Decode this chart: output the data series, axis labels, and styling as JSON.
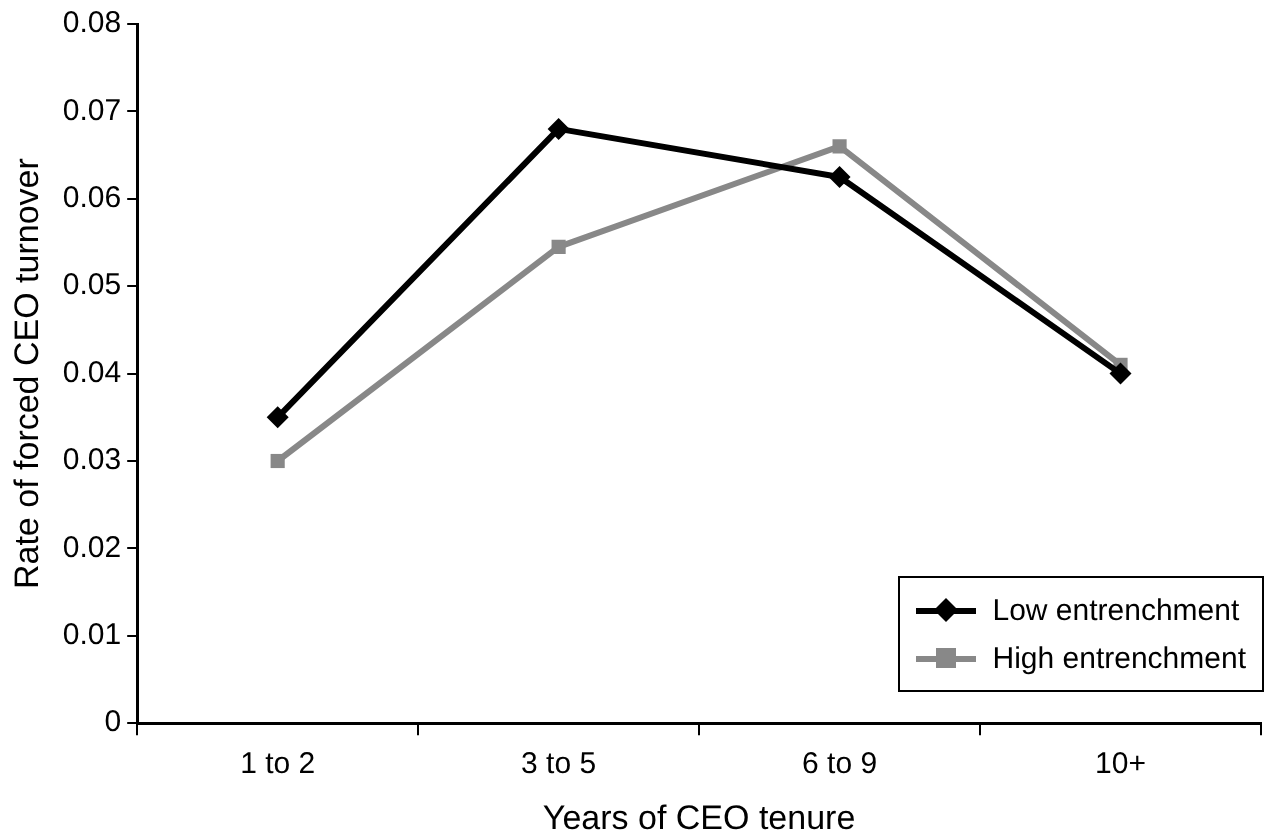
{
  "chart_data": {
    "type": "line",
    "xlabel": "Years of CEO tenure",
    "ylabel": "Rate of forced CEO turnover",
    "categories": [
      "1 to 2",
      "3 to 5",
      "6 to 9",
      "10+"
    ],
    "series": [
      {
        "name": "Low entrenchment",
        "color": "#000000",
        "marker": "diamond",
        "values": [
          0.035,
          0.068,
          0.0625,
          0.04
        ]
      },
      {
        "name": "High entrenchment",
        "color": "#888888",
        "marker": "square",
        "values": [
          0.03,
          0.0545,
          0.066,
          0.041
        ]
      }
    ],
    "ylim": [
      0,
      0.08
    ],
    "yticks": [
      0,
      0.01,
      0.02,
      0.03,
      0.04,
      0.05,
      0.06,
      0.07,
      0.08
    ],
    "grid": false,
    "legend": "bottom right",
    "line_style": "solid"
  }
}
